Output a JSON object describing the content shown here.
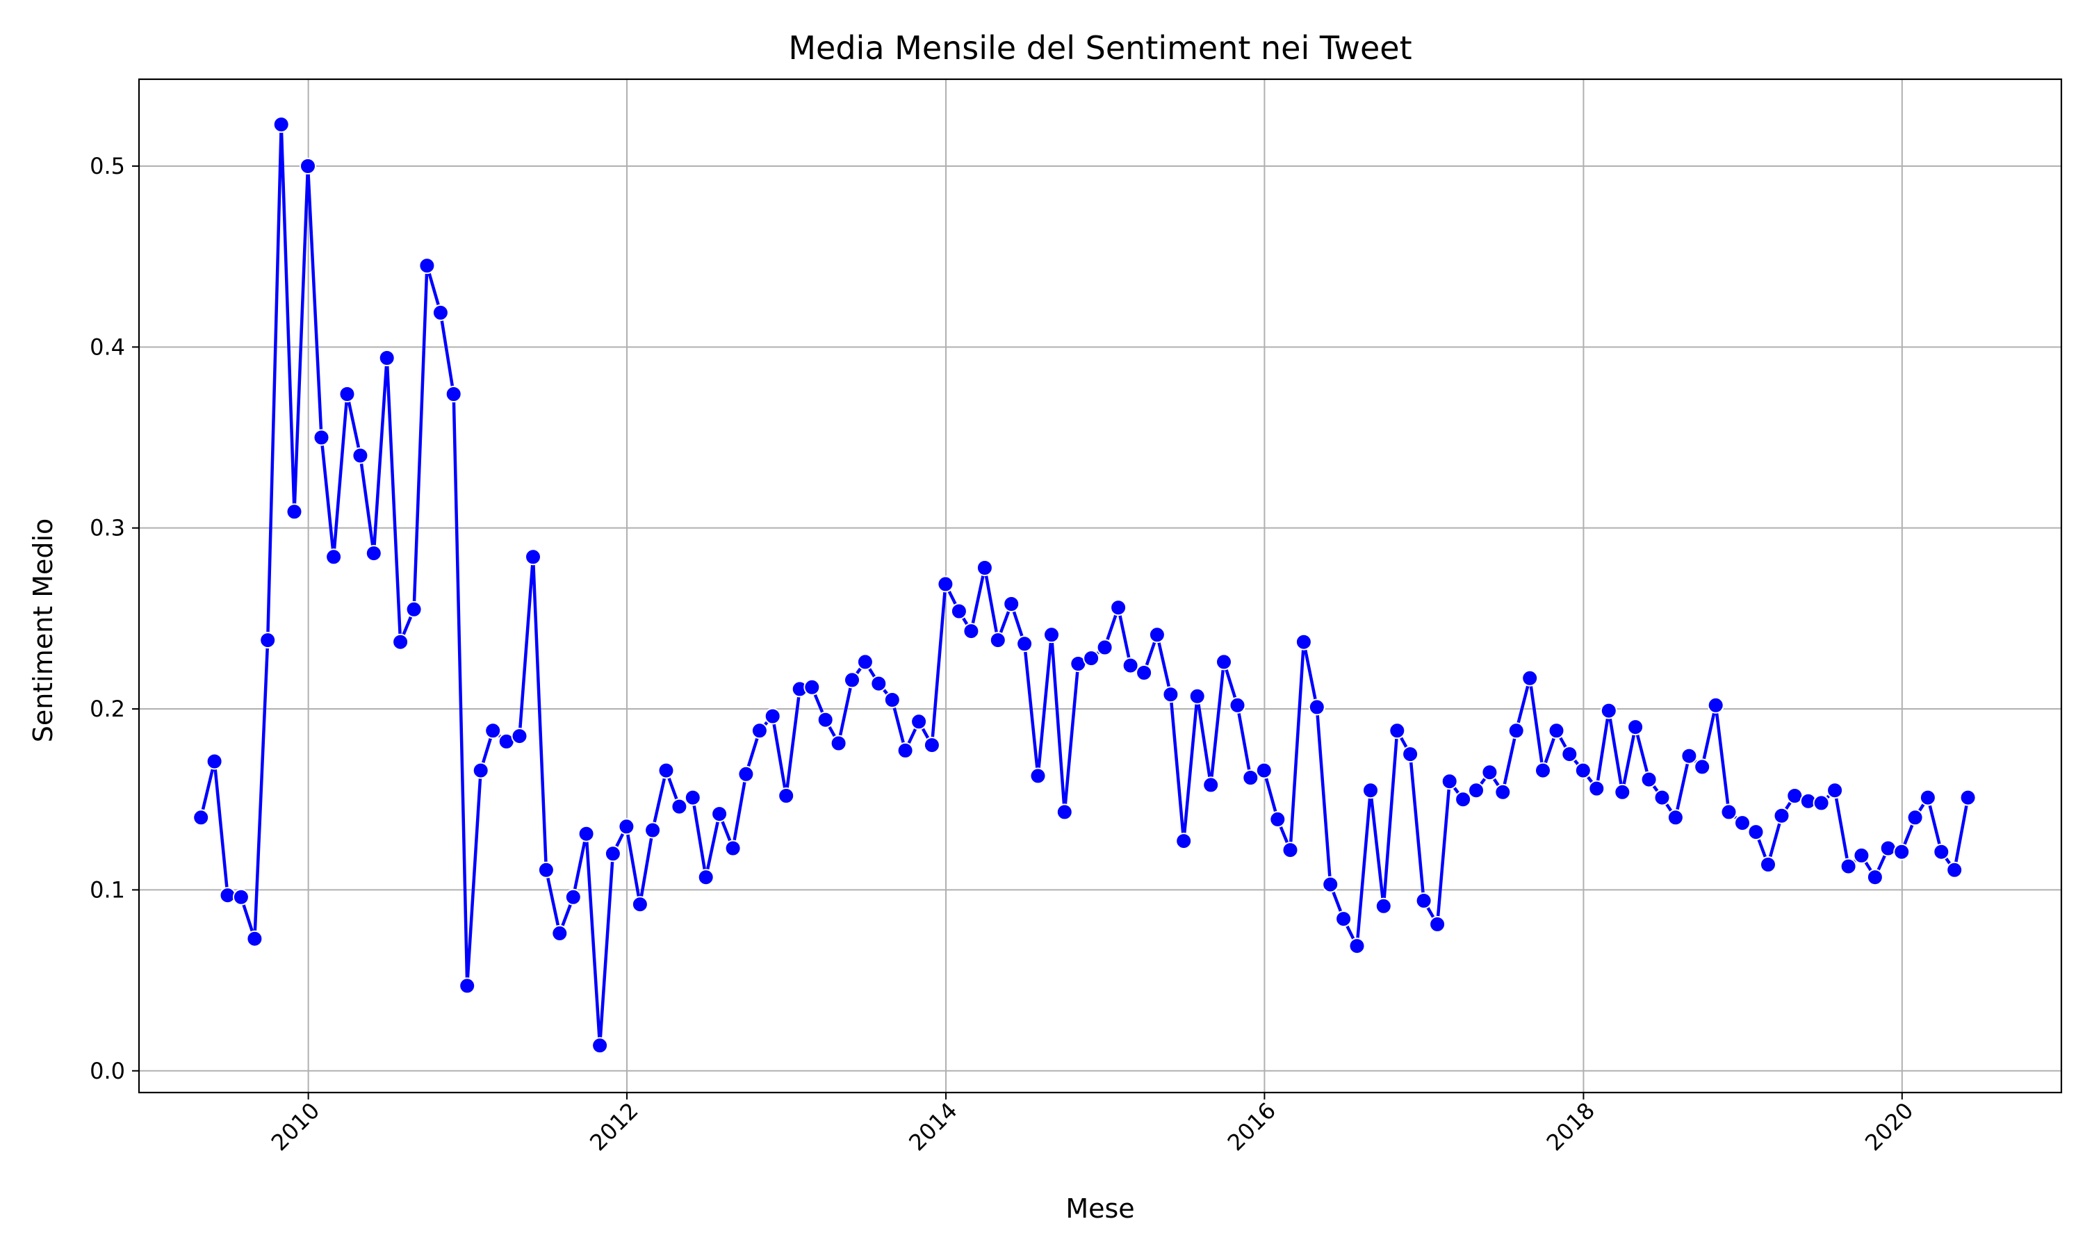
{
  "chart_data": {
    "type": "line",
    "title": "Media Mensile del Sentiment nei Tweet",
    "xlabel": "Mese",
    "ylabel": "Sentiment Medio",
    "x_type": "date",
    "xlim": [
      "2008-12-09",
      "2020-12-31"
    ],
    "ylim": [
      -0.012,
      0.548
    ],
    "x_ticks": [
      "2010-01-01",
      "2012-01-01",
      "2014-01-01",
      "2016-01-01",
      "2018-01-01",
      "2020-01-01"
    ],
    "x_tick_labels": [
      "2010",
      "2012",
      "2014",
      "2016",
      "2018",
      "2020"
    ],
    "y_ticks": [
      0.0,
      0.1,
      0.2,
      0.3,
      0.4,
      0.5
    ],
    "y_tick_labels": [
      "0.0",
      "0.1",
      "0.2",
      "0.3",
      "0.4",
      "0.5"
    ],
    "x_tick_rotation": -45,
    "grid": true,
    "colors": {
      "line": "#0000ff",
      "marker": "#0000ff",
      "marker_edge": "#ffffff",
      "grid": "#b0b0b0"
    },
    "series": [
      {
        "x": [
          "2009-04-30",
          "2009-05-31",
          "2009-06-30",
          "2009-07-31",
          "2009-08-31",
          "2009-09-30",
          "2009-10-31",
          "2009-11-30",
          "2009-12-31",
          "2010-01-31",
          "2010-02-28",
          "2010-03-31",
          "2010-04-30",
          "2010-05-31",
          "2010-06-30",
          "2010-07-31",
          "2010-08-31",
          "2010-09-30",
          "2010-10-31",
          "2010-11-30",
          "2010-12-31",
          "2011-01-31",
          "2011-02-28",
          "2011-03-31",
          "2011-04-30",
          "2011-05-31",
          "2011-06-30",
          "2011-07-31",
          "2011-08-31",
          "2011-09-30",
          "2011-10-31",
          "2011-11-30",
          "2011-12-31",
          "2012-01-31",
          "2012-02-29",
          "2012-03-31",
          "2012-04-30",
          "2012-05-31",
          "2012-06-30",
          "2012-07-31",
          "2012-08-31",
          "2012-09-30",
          "2012-10-31",
          "2012-11-30",
          "2012-12-31",
          "2013-01-31",
          "2013-02-28",
          "2013-03-31",
          "2013-04-30",
          "2013-05-31",
          "2013-06-30",
          "2013-07-31",
          "2013-08-31",
          "2013-09-30",
          "2013-10-31",
          "2013-11-30",
          "2013-12-31",
          "2014-01-31",
          "2014-02-28",
          "2014-03-31",
          "2014-04-30",
          "2014-05-31",
          "2014-06-30",
          "2014-07-31",
          "2014-08-31",
          "2014-09-30",
          "2014-10-31",
          "2014-11-30",
          "2014-12-31",
          "2015-01-31",
          "2015-02-28",
          "2015-03-31",
          "2015-04-30",
          "2015-05-31",
          "2015-06-30",
          "2015-07-31",
          "2015-08-31",
          "2015-09-30",
          "2015-10-31",
          "2015-11-30",
          "2015-12-31",
          "2016-01-31",
          "2016-02-29",
          "2016-03-31",
          "2016-04-30",
          "2016-05-31",
          "2016-06-30",
          "2016-07-31",
          "2016-08-31",
          "2016-09-30",
          "2016-10-31",
          "2016-11-30",
          "2016-12-31",
          "2017-01-31",
          "2017-02-28",
          "2017-03-31",
          "2017-04-30",
          "2017-05-31",
          "2017-06-30",
          "2017-07-31",
          "2017-08-31",
          "2017-09-30",
          "2017-10-31",
          "2017-11-30",
          "2017-12-31",
          "2018-01-31",
          "2018-02-28",
          "2018-03-31",
          "2018-04-30",
          "2018-05-31",
          "2018-06-30",
          "2018-07-31",
          "2018-08-31",
          "2018-09-30",
          "2018-10-31",
          "2018-11-30",
          "2018-12-31",
          "2019-01-31",
          "2019-02-28",
          "2019-03-31",
          "2019-04-30",
          "2019-05-31",
          "2019-06-30",
          "2019-07-31",
          "2019-08-31",
          "2019-09-30",
          "2019-10-31",
          "2019-11-30",
          "2019-12-31",
          "2020-01-31",
          "2020-02-29",
          "2020-03-31",
          "2020-04-30",
          "2020-05-31"
        ],
        "values": [
          0.14,
          0.171,
          0.097,
          0.096,
          0.073,
          0.238,
          0.523,
          0.309,
          0.5,
          0.35,
          0.284,
          0.374,
          0.34,
          0.286,
          0.394,
          0.237,
          0.255,
          0.445,
          0.419,
          0.374,
          0.047,
          0.166,
          0.188,
          0.182,
          0.185,
          0.284,
          0.111,
          0.076,
          0.096,
          0.131,
          0.014,
          0.12,
          0.135,
          0.092,
          0.133,
          0.166,
          0.146,
          0.151,
          0.107,
          0.142,
          0.123,
          0.164,
          0.188,
          0.196,
          0.152,
          0.211,
          0.212,
          0.194,
          0.181,
          0.216,
          0.226,
          0.214,
          0.205,
          0.177,
          0.193,
          0.18,
          0.269,
          0.254,
          0.243,
          0.278,
          0.238,
          0.258,
          0.236,
          0.163,
          0.241,
          0.143,
          0.225,
          0.228,
          0.234,
          0.256,
          0.224,
          0.22,
          0.241,
          0.208,
          0.127,
          0.207,
          0.158,
          0.226,
          0.202,
          0.162,
          0.166,
          0.139,
          0.122,
          0.237,
          0.201,
          0.103,
          0.084,
          0.069,
          0.155,
          0.091,
          0.188,
          0.175,
          0.094,
          0.081,
          0.16,
          0.15,
          0.155,
          0.165,
          0.154,
          0.188,
          0.217,
          0.166,
          0.188,
          0.175,
          0.166,
          0.156,
          0.199,
          0.154,
          0.19,
          0.161,
          0.151,
          0.14,
          0.174,
          0.168,
          0.202,
          0.143,
          0.137,
          0.132,
          0.114,
          0.141,
          0.152,
          0.149,
          0.148,
          0.155,
          0.113,
          0.119,
          0.107,
          0.123,
          0.121,
          0.14,
          0.151,
          0.121,
          0.111,
          0.151
        ]
      }
    ]
  }
}
